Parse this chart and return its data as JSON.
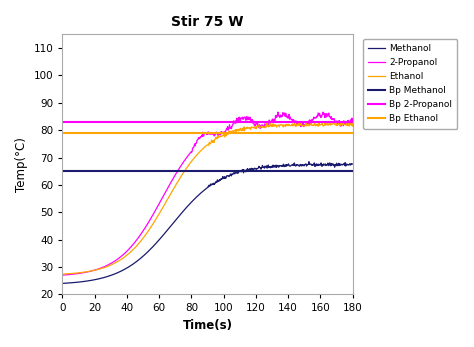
{
  "title": "Stir 75 W",
  "xlabel": "Time(s)",
  "ylabel": "Temp(°C)",
  "xlim": [
    0,
    180
  ],
  "ylim": [
    20,
    115
  ],
  "yticks": [
    20,
    30,
    40,
    50,
    60,
    70,
    80,
    90,
    100,
    110
  ],
  "xticks": [
    0,
    20,
    40,
    60,
    80,
    100,
    120,
    140,
    160,
    180
  ],
  "bp_methanol": 65.0,
  "bp_2propanol": 83.0,
  "bp_ethanol": 79.0,
  "methanol_start": 23.5,
  "propanol_start": 26.5,
  "ethanol_start": 27.0,
  "methanol_end": 67.5,
  "propanol_end": 84.0,
  "ethanol_end": 82.0,
  "methanol_tmid": 68,
  "propanol_tmid": 62,
  "ethanol_tmid": 65,
  "methanol_steep": 0.065,
  "propanol_steep": 0.075,
  "ethanol_steep": 0.075,
  "colors": {
    "methanol_curve": "#1a1a6e",
    "propanol_curve": "#FF00FF",
    "ethanol_curve": "#FFA500",
    "bp_methanol": "#1a1a6e",
    "bp_propanol": "#FF00FF",
    "bp_ethanol": "#FFA500"
  },
  "legend_labels": [
    "Methanol",
    "2-Propanol",
    "Ethanol",
    "Bp Methanol",
    "Bp 2-Propanol",
    "Bp Ethanol"
  ],
  "figsize": [
    4.74,
    3.47
  ],
  "dpi": 100
}
